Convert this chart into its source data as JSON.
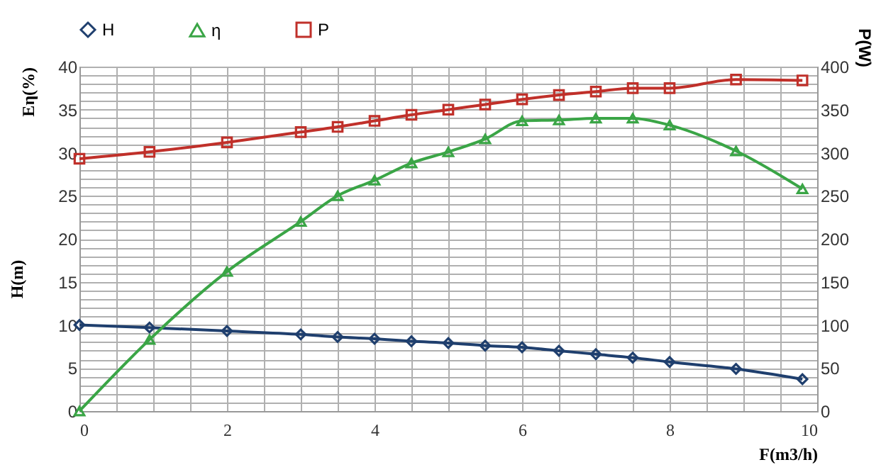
{
  "chart_data": {
    "type": "line",
    "xlabel": "F(m3/h)",
    "ylabel": "Eη(%)",
    "y2label": "P(W)",
    "annotations": [
      "H(m)"
    ],
    "x": [
      0,
      0.95,
      2,
      3,
      3.5,
      4,
      4.5,
      5,
      5.5,
      6,
      6.5,
      7,
      7.5,
      8,
      8.9,
      9.8
    ],
    "series": [
      {
        "name": "H",
        "color": "#1f3f6e",
        "marker": "diamond",
        "values": [
          10,
          9.7,
          9.3,
          8.9,
          8.6,
          8.4,
          8.1,
          7.9,
          7.6,
          7.4,
          7.0,
          6.6,
          6.2,
          5.7,
          4.9,
          3.7
        ]
      },
      {
        "name": "η",
        "color": "#3aa546",
        "marker": "triangle",
        "values": [
          0,
          8.3,
          16.2,
          22,
          25,
          26.8,
          28.8,
          30.1,
          31.6,
          33.7,
          33.8,
          34,
          34,
          33.2,
          30.2,
          25.8
        ]
      },
      {
        "name": "P",
        "color": "#c0302a",
        "marker": "square",
        "axis": "y2",
        "values": [
          293,
          301,
          312,
          324,
          330,
          337,
          344,
          350,
          356,
          362,
          367,
          371,
          375,
          375,
          385,
          384
        ]
      }
    ],
    "xlim": [
      0,
      10
    ],
    "xticks": [
      0,
      {
        "value": 0.5,
        "label": null
      },
      {
        "value": 1,
        "label": null
      },
      {
        "value": 1.5,
        "label": null
      },
      2,
      {
        "value": 2.5,
        "label": null
      },
      {
        "value": 3,
        "label": null
      },
      {
        "value": 3.5,
        "label": null
      },
      4,
      {
        "value": 4.5,
        "label": null
      },
      {
        "value": 5,
        "label": null
      },
      {
        "value": 5.5,
        "label": null
      },
      6,
      {
        "value": 6.5,
        "label": null
      },
      {
        "value": 7,
        "label": null
      },
      {
        "value": 7.5,
        "label": null
      },
      8,
      {
        "value": 8.5,
        "label": null
      },
      {
        "value": 9,
        "label": null
      },
      {
        "value": 9.5,
        "label": null
      },
      10
    ],
    "ylim": [
      0,
      40
    ],
    "yticks": [
      0,
      {
        "value": 1,
        "label": null
      },
      {
        "value": 2,
        "label": null
      },
      {
        "value": 3,
        "label": null
      },
      {
        "value": 4,
        "label": null
      },
      5,
      {
        "value": 6,
        "label": null
      },
      {
        "value": 7,
        "label": null
      },
      {
        "value": 8,
        "label": null
      },
      {
        "value": 9,
        "label": null
      },
      10,
      {
        "value": 11,
        "label": null
      },
      {
        "value": 12,
        "label": null
      },
      {
        "value": 13,
        "label": null
      },
      {
        "value": 14,
        "label": null
      },
      15,
      {
        "value": 16,
        "label": null
      },
      {
        "value": 17,
        "label": null
      },
      {
        "value": 18,
        "label": null
      },
      {
        "value": 19,
        "label": null
      },
      20,
      {
        "value": 21,
        "label": null
      },
      {
        "value": 22,
        "label": null
      },
      {
        "value": 23,
        "label": null
      },
      {
        "value": 24,
        "label": null
      },
      25,
      {
        "value": 26,
        "label": null
      },
      {
        "value": 27,
        "label": null
      },
      {
        "value": 28,
        "label": null
      },
      {
        "value": 29,
        "label": null
      },
      30,
      {
        "value": 31,
        "label": null
      },
      {
        "value": 32,
        "label": null
      },
      {
        "value": 33,
        "label": null
      },
      {
        "value": 34,
        "label": null
      },
      35,
      {
        "value": 36,
        "label": null
      },
      {
        "value": 37,
        "label": null
      },
      {
        "value": 38,
        "label": null
      },
      {
        "value": 39,
        "label": null
      },
      40
    ],
    "y2lim": [
      0,
      400
    ],
    "y2ticks": [
      0,
      50,
      100,
      150,
      200,
      250,
      300,
      350,
      400
    ],
    "grid": true,
    "legend": "top",
    "line_style": "solid"
  }
}
